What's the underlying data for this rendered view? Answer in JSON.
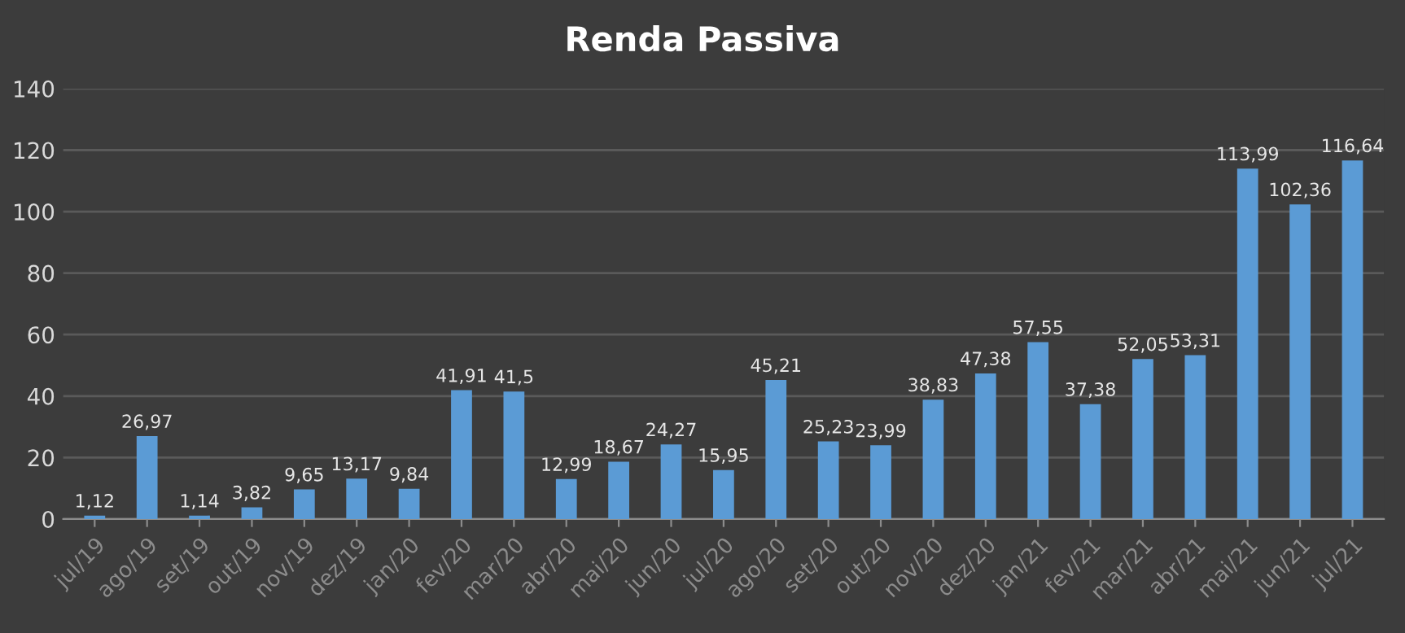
{
  "chart_data": {
    "type": "bar",
    "title": "Renda Passiva",
    "categories": [
      "jul/19",
      "ago/19",
      "set/19",
      "out/19",
      "nov/19",
      "dez/19",
      "jan/20",
      "fev/20",
      "mar/20",
      "abr/20",
      "mai/20",
      "jun/20",
      "jul/20",
      "ago/20",
      "set/20",
      "out/20",
      "nov/20",
      "dez/20",
      "jan/21",
      "fev/21",
      "mar/21",
      "abr/21",
      "mai/21",
      "jun/21",
      "jul/21"
    ],
    "values": [
      1.12,
      26.97,
      1.14,
      3.82,
      9.65,
      13.17,
      9.84,
      41.91,
      41.5,
      12.99,
      18.67,
      24.27,
      15.95,
      45.21,
      25.23,
      23.99,
      38.83,
      47.38,
      57.55,
      37.38,
      52.05,
      53.31,
      113.99,
      102.36,
      116.64
    ],
    "value_labels": [
      "1,12",
      "26,97",
      "1,14",
      "3,82",
      "9,65",
      "13,17",
      "9,84",
      "41,91",
      "41,5",
      "12,99",
      "18,67",
      "24,27",
      "15,95",
      "45,21",
      "25,23",
      "23,99",
      "38,83",
      "47,38",
      "57,55",
      "37,38",
      "52,05",
      "53,31",
      "113,99",
      "102,36",
      "116,64"
    ],
    "color": "#5b9bd5",
    "ylim": [
      0,
      140
    ],
    "yticks": [
      0,
      20,
      40,
      60,
      80,
      100,
      120,
      140
    ],
    "grid": "y",
    "legend": false
  }
}
